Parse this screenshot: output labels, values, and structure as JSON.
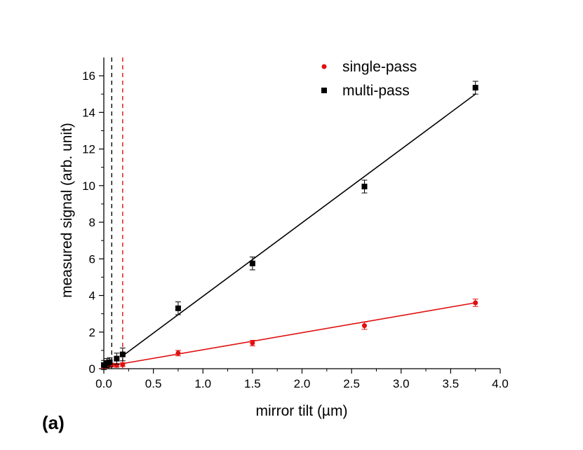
{
  "panel_label": "(a)",
  "chart_data": {
    "type": "scatter",
    "title": "",
    "xlabel": "mirror tilt (µm)",
    "ylabel": "measured signal (arb. unit)",
    "xlim": [
      0.0,
      4.0
    ],
    "ylim": [
      0,
      17
    ],
    "x_ticks": [
      0.0,
      0.5,
      1.0,
      1.5,
      2.0,
      2.5,
      3.0,
      3.5,
      4.0
    ],
    "x_tick_labels": [
      "0.0",
      "0.5",
      "1.0",
      "1.5",
      "2.0",
      "2.5",
      "3.0",
      "3.5",
      "4.0"
    ],
    "y_ticks": [
      0,
      2,
      4,
      6,
      8,
      10,
      12,
      14,
      16
    ],
    "y_tick_labels": [
      "0",
      "2",
      "4",
      "6",
      "8",
      "10",
      "12",
      "14",
      "16"
    ],
    "y_minor_step": 1,
    "x_minor_step": 0.25,
    "grid": false,
    "legend_position": "top-right",
    "series": [
      {
        "name": "single-pass",
        "marker": "circle",
        "color": "#e01010",
        "x": [
          0.0,
          0.02,
          0.05,
          0.08,
          0.13,
          0.19,
          0.75,
          1.5,
          2.63,
          3.75
        ],
        "y": [
          0.12,
          0.15,
          0.18,
          0.2,
          0.18,
          0.22,
          0.85,
          1.4,
          2.35,
          3.6
        ],
        "err": [
          0.1,
          0.1,
          0.1,
          0.1,
          0.1,
          0.1,
          0.15,
          0.15,
          0.2,
          0.2
        ],
        "fit": {
          "x": [
            0.0,
            3.75
          ],
          "y": [
            0.1,
            3.6
          ]
        }
      },
      {
        "name": "multi-pass",
        "marker": "square",
        "color": "#000000",
        "x": [
          0.0,
          0.03,
          0.06,
          0.13,
          0.19,
          0.75,
          1.5,
          2.63,
          3.75
        ],
        "y": [
          0.2,
          0.3,
          0.35,
          0.55,
          0.78,
          3.3,
          5.75,
          9.95,
          15.35
        ],
        "err": [
          0.25,
          0.25,
          0.25,
          0.3,
          0.35,
          0.35,
          0.35,
          0.35,
          0.35
        ],
        "fit": {
          "x": [
            0.19,
            3.75
          ],
          "y": [
            0.7,
            15.0
          ]
        }
      }
    ],
    "reference_lines": [
      {
        "x": 0.08,
        "color": "#000000",
        "style": "dashed"
      },
      {
        "x": 0.19,
        "color": "#e01010",
        "style": "dashed"
      }
    ]
  }
}
